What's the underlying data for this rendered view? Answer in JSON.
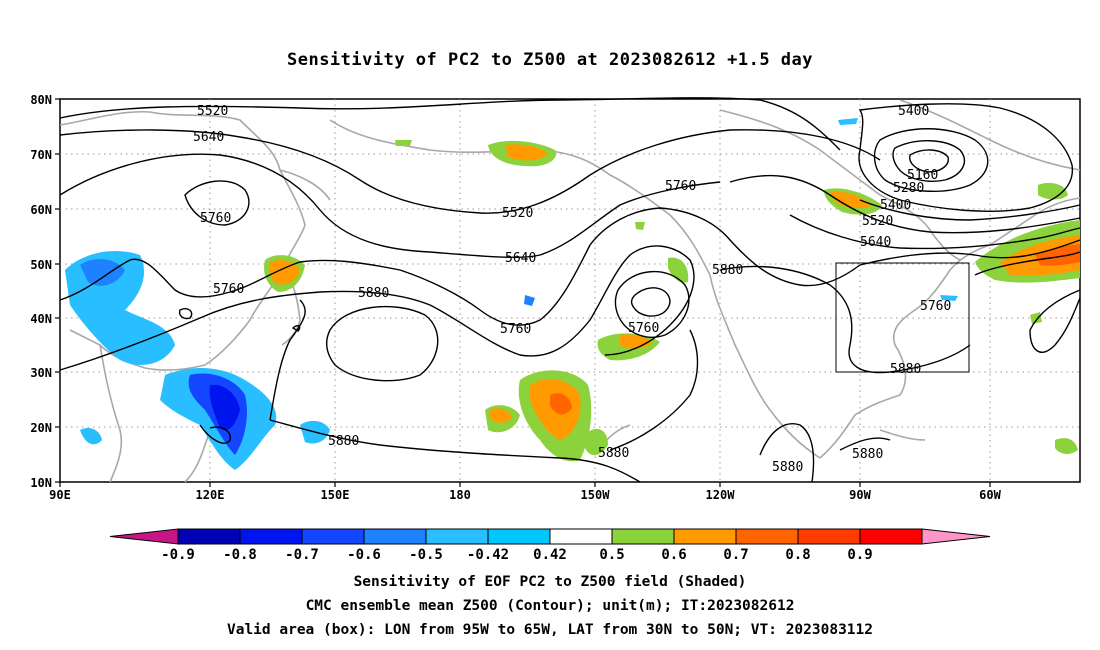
{
  "title": "Sensitivity of PC2 to Z500 at 2023082612 +1.5 day",
  "lat_labels": [
    "80N",
    "70N",
    "60N",
    "50N",
    "40N",
    "30N",
    "20N",
    "10N"
  ],
  "lon_labels": [
    "90E",
    "120E",
    "150E",
    "180",
    "150W",
    "120W",
    "90W",
    "60W"
  ],
  "contour_labels": [
    "5520",
    "5640",
    "5760",
    "5400",
    "5160",
    "5280",
    "5400",
    "5520",
    "5640",
    "5760",
    "5520",
    "5640",
    "5880",
    "5760",
    "5760",
    "5880",
    "5760",
    "5760",
    "5880",
    "5880",
    "5880",
    "5880",
    "5880"
  ],
  "colorbar": {
    "labels": [
      "-0.9",
      "-0.8",
      "-0.7",
      "-0.6",
      "-0.5",
      "-0.42",
      "0.42",
      "0.5",
      "0.6",
      "0.7",
      "0.8",
      "0.9"
    ],
    "colors": [
      "#c71585",
      "#0000b4",
      "#0014f0",
      "#1446ff",
      "#1e82ff",
      "#28beff",
      "#00c8ff",
      "#ffffff",
      "#8cd23c",
      "#ff9b00",
      "#ff6400",
      "#ff3c00",
      "#ff0000",
      "#ff96c8"
    ]
  },
  "valid_box": {
    "lon_from": "95W",
    "lon_to": "65W",
    "lat_from": "30N",
    "lat_to": "50N"
  },
  "captions": [
    "Sensitivity of EOF PC2 to Z500 field (Shaded)",
    "CMC ensemble mean Z500 (Contour); unit(m); IT:2023082612",
    "Valid area (box): LON from 95W to 65W, LAT from 30N to 50N; VT: 2023083112"
  ]
}
